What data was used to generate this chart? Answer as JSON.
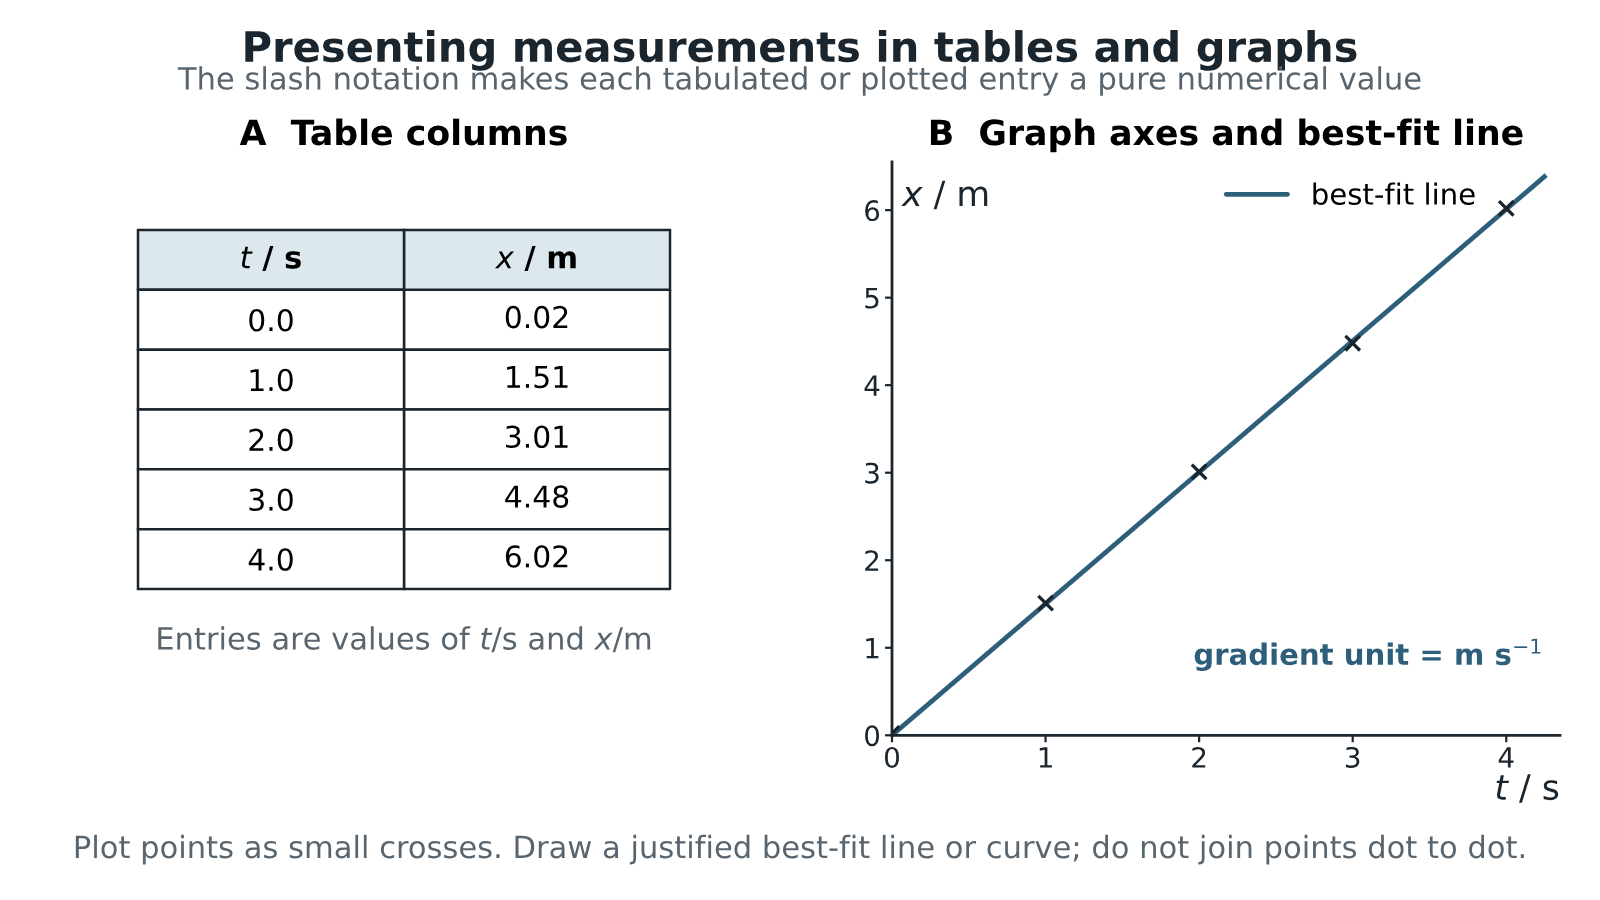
{
  "chart_data": [
    {
      "type": "other",
      "title": "Presenting measurements in tables and graphs",
      "subtitle": "The slash notation makes each tabulated or plotted entry a pure numerical value",
      "annotations": [
        "Plot points as small crosses. Draw a justified best-fit line or curve; do not join points dot to dot."
      ]
    },
    {
      "type": "heatmap",
      "title": "A  Table columns",
      "ylabel": "t / s",
      "categories": [
        "x / m"
      ],
      "y_categories": [
        "0.0",
        "1.0",
        "2.0",
        "3.0",
        "4.0"
      ],
      "data_labels": true,
      "cells": [
        [
          0.02
        ],
        [
          1.51
        ],
        [
          3.01
        ],
        [
          4.48
        ],
        [
          6.02
        ]
      ],
      "annotations": [
        "Entries are values of t/s and x/m"
      ]
    },
    {
      "type": "scatter",
      "title": "B  Graph axes and best-fit line",
      "xlabel": "t / s",
      "ylabel": "x / m",
      "xlim": [
        0,
        4.35
      ],
      "ylim": [
        0,
        6.55
      ],
      "xticks": [
        0,
        1,
        2,
        3,
        4
      ],
      "yticks": [
        0,
        1,
        2,
        3,
        4,
        5,
        6
      ],
      "legend": "top right",
      "series": [
        {
          "color": "#1b252e",
          "marker": "cross",
          "x": [
            0,
            1,
            2,
            3,
            4
          ],
          "values": [
            0.02,
            1.51,
            3.01,
            4.48,
            6.02
          ]
        },
        {
          "type": "line",
          "name": "best-fit line",
          "color": "#2e5f7a",
          "line_style": "solid",
          "x": [
            0,
            4.26
          ],
          "values": [
            0,
            6.4
          ]
        }
      ],
      "annotations": [
        "gradient unit = m s$^{−1}$"
      ]
    }
  ]
}
